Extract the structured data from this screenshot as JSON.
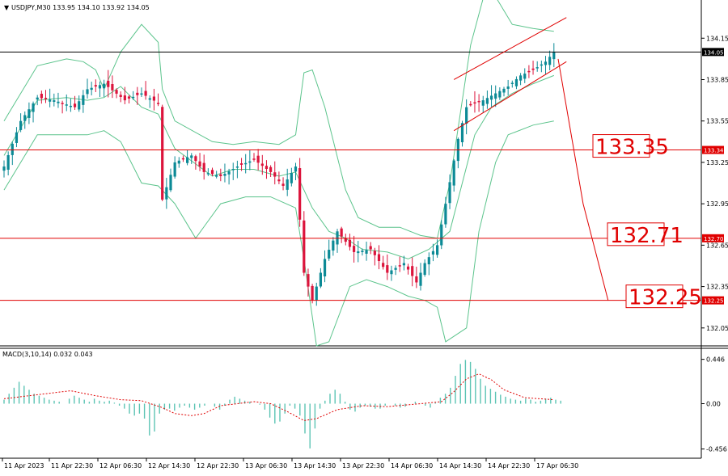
{
  "chart_data": {
    "type": "candlestick",
    "header": {
      "marker": "▼",
      "text": "USDJPY,M30  133.95 134.10 133.92 134.05"
    },
    "symbol": "USDJPY",
    "timeframe": "M30",
    "ohlc": {
      "open": 133.95,
      "high": 134.1,
      "low": 133.92,
      "close": 134.05
    },
    "price_axis": {
      "ylim": [
        131.92,
        134.38
      ],
      "ticks": [
        "134.15",
        "133.85",
        "133.55",
        "133.25",
        "132.95",
        "132.65",
        "132.35",
        "132.05"
      ]
    },
    "current_price": {
      "value": 134.05,
      "label": "134.05"
    },
    "levels": [
      {
        "value": 133.34,
        "tag": "133.34",
        "box": "133.35"
      },
      {
        "value": 132.7,
        "tag": "132.70",
        "box": "132.71"
      },
      {
        "value": 132.25,
        "tag": "132.25",
        "box": "132.25"
      }
    ],
    "time_axis": [
      "11 Apr 2023",
      "11 Apr 22:30",
      "12 Apr 06:30",
      "12 Apr 14:30",
      "12 Apr 22:30",
      "13 Apr 06:30",
      "13 Apr 14:30",
      "13 Apr 22:30",
      "14 Apr 06:30",
      "14 Apr 14:30",
      "14 Apr 22:30",
      "17 Apr 06:30"
    ],
    "close_path": [
      [
        0,
        133.22
      ],
      [
        4,
        133.55
      ],
      [
        8,
        133.72
      ],
      [
        12,
        133.7
      ],
      [
        17,
        133.65
      ],
      [
        20,
        133.78
      ],
      [
        24,
        133.82
      ],
      [
        29,
        133.7
      ],
      [
        33,
        133.75
      ],
      [
        37,
        133.68
      ],
      [
        38,
        132.98
      ],
      [
        41,
        133.25
      ],
      [
        45,
        133.3
      ],
      [
        48,
        133.18
      ],
      [
        52,
        133.15
      ],
      [
        56,
        133.22
      ],
      [
        60,
        133.27
      ],
      [
        64,
        133.18
      ],
      [
        67,
        133.08
      ],
      [
        70,
        133.22
      ],
      [
        72,
        132.45
      ],
      [
        74,
        132.25
      ],
      [
        77,
        132.55
      ],
      [
        80,
        132.75
      ],
      [
        84,
        132.6
      ],
      [
        88,
        132.62
      ],
      [
        92,
        132.45
      ],
      [
        96,
        132.52
      ],
      [
        99,
        132.38
      ],
      [
        101,
        132.52
      ],
      [
        104,
        132.65
      ],
      [
        106,
        132.95
      ],
      [
        109,
        133.42
      ],
      [
        111,
        133.65
      ],
      [
        113,
        133.68
      ],
      [
        115,
        133.7
      ],
      [
        118,
        133.75
      ],
      [
        121,
        133.8
      ],
      [
        124,
        133.88
      ],
      [
        127,
        133.92
      ],
      [
        130,
        133.98
      ],
      [
        132,
        134.05
      ]
    ],
    "bollinger": {
      "upper": [
        [
          0,
          133.55
        ],
        [
          8,
          133.95
        ],
        [
          15,
          134.0
        ],
        [
          19,
          133.98
        ],
        [
          22,
          133.92
        ],
        [
          24,
          133.78
        ],
        [
          28,
          134.05
        ],
        [
          33,
          134.25
        ],
        [
          37,
          134.12
        ],
        [
          38,
          133.78
        ],
        [
          41,
          133.55
        ],
        [
          50,
          133.4
        ],
        [
          55,
          133.38
        ],
        [
          60,
          133.4
        ],
        [
          66,
          133.38
        ],
        [
          70,
          133.45
        ],
        [
          72,
          133.9
        ],
        [
          74,
          133.92
        ],
        [
          77,
          133.65
        ],
        [
          82,
          133.05
        ],
        [
          85,
          132.85
        ],
        [
          90,
          132.78
        ],
        [
          95,
          132.78
        ],
        [
          100,
          132.72
        ],
        [
          104,
          132.7
        ],
        [
          107,
          133.1
        ],
        [
          112,
          134.1
        ],
        [
          116,
          134.55
        ],
        [
          119,
          134.4
        ],
        [
          122,
          134.25
        ],
        [
          127,
          134.22
        ],
        [
          132,
          134.2
        ]
      ],
      "middle": [
        [
          0,
          133.3
        ],
        [
          8,
          133.7
        ],
        [
          15,
          133.72
        ],
        [
          20,
          133.7
        ],
        [
          24,
          133.72
        ],
        [
          28,
          133.8
        ],
        [
          33,
          133.65
        ],
        [
          37,
          133.6
        ],
        [
          41,
          133.35
        ],
        [
          50,
          133.15
        ],
        [
          55,
          133.2
        ],
        [
          60,
          133.2
        ],
        [
          66,
          133.15
        ],
        [
          70,
          133.18
        ],
        [
          74,
          132.92
        ],
        [
          78,
          132.75
        ],
        [
          82,
          132.7
        ],
        [
          86,
          132.62
        ],
        [
          92,
          132.6
        ],
        [
          97,
          132.55
        ],
        [
          102,
          132.62
        ],
        [
          107,
          132.75
        ],
        [
          110,
          133.1
        ],
        [
          113,
          133.45
        ],
        [
          117,
          133.65
        ],
        [
          122,
          133.75
        ],
        [
          127,
          133.82
        ],
        [
          132,
          133.88
        ]
      ],
      "lower": [
        [
          0,
          133.05
        ],
        [
          8,
          133.45
        ],
        [
          15,
          133.45
        ],
        [
          20,
          133.45
        ],
        [
          24,
          133.48
        ],
        [
          28,
          133.4
        ],
        [
          33,
          133.1
        ],
        [
          37,
          133.08
        ],
        [
          41,
          132.95
        ],
        [
          46,
          132.7
        ],
        [
          52,
          132.95
        ],
        [
          58,
          133.0
        ],
        [
          64,
          133.0
        ],
        [
          70,
          132.92
        ],
        [
          72,
          132.55
        ],
        [
          75,
          131.92
        ],
        [
          78,
          131.95
        ],
        [
          83,
          132.35
        ],
        [
          87,
          132.4
        ],
        [
          92,
          132.35
        ],
        [
          97,
          132.28
        ],
        [
          101,
          132.25
        ],
        [
          104,
          132.2
        ],
        [
          106,
          131.95
        ],
        [
          111,
          132.05
        ],
        [
          114,
          132.75
        ],
        [
          118,
          133.25
        ],
        [
          121,
          133.45
        ],
        [
          127,
          133.52
        ],
        [
          132,
          133.55
        ]
      ]
    },
    "channel": {
      "upper": [
        [
          108,
          133.85
        ],
        [
          135,
          134.3
        ]
      ],
      "lower": [
        [
          108,
          133.48
        ],
        [
          135,
          133.98
        ]
      ]
    },
    "projection": [
      [
        133,
        134.0
      ],
      [
        139,
        132.95
      ],
      [
        145,
        132.25
      ]
    ],
    "macd": {
      "label": "MACD(3,10,14) 0.032 0.043",
      "ylim": [
        -0.5,
        0.5
      ],
      "ticks": [
        "0.446",
        "0.00",
        "-0.456"
      ],
      "histogram": [
        0.04,
        0.1,
        0.16,
        0.22,
        0.18,
        0.14,
        0.1,
        0.08,
        0.06,
        0.04,
        0.03,
        0.02,
        0.0,
        0.05,
        0.08,
        0.06,
        0.04,
        0.02,
        0.05,
        0.03,
        0.02,
        0.03,
        0.01,
        -0.02,
        -0.05,
        -0.1,
        -0.12,
        -0.1,
        -0.15,
        -0.32,
        -0.28,
        -0.1,
        -0.06,
        -0.05,
        -0.07,
        -0.04,
        -0.02,
        -0.04,
        -0.06,
        -0.04,
        -0.02,
        0.0,
        -0.03,
        -0.06,
        -0.02,
        0.04,
        0.07,
        0.05,
        0.03,
        0.02,
        0.0,
        -0.01,
        -0.06,
        -0.14,
        -0.2,
        -0.18,
        -0.1,
        -0.02,
        -0.05,
        -0.12,
        -0.3,
        -0.45,
        -0.25,
        -0.05,
        0.03,
        0.1,
        0.14,
        0.1,
        0.02,
        -0.06,
        -0.08,
        -0.04,
        -0.02,
        -0.03,
        -0.05,
        -0.05,
        -0.02,
        0.0,
        -0.02,
        -0.04,
        -0.03,
        0.0,
        0.02,
        0.0,
        -0.02,
        -0.04,
        0.01,
        0.06,
        0.1,
        0.16,
        0.28,
        0.4,
        0.44,
        0.42,
        0.35,
        0.25,
        0.18,
        0.15,
        0.12,
        0.09,
        0.07,
        0.05,
        0.04,
        0.03,
        0.05,
        0.04,
        0.02,
        0.03,
        0.05,
        0.06,
        0.04,
        0.03
      ],
      "signal": [
        [
          0,
          0.05
        ],
        [
          10,
          0.1
        ],
        [
          16,
          0.13
        ],
        [
          22,
          0.08
        ],
        [
          28,
          0.04
        ],
        [
          33,
          0.03
        ],
        [
          38,
          -0.04
        ],
        [
          41,
          -0.1
        ],
        [
          45,
          -0.12
        ],
        [
          48,
          -0.1
        ],
        [
          52,
          -0.02
        ],
        [
          56,
          0.0
        ],
        [
          60,
          0.02
        ],
        [
          64,
          0.0
        ],
        [
          68,
          -0.08
        ],
        [
          72,
          -0.17
        ],
        [
          75,
          -0.15
        ],
        [
          80,
          -0.06
        ],
        [
          86,
          -0.02
        ],
        [
          92,
          -0.03
        ],
        [
          100,
          0.0
        ],
        [
          105,
          0.02
        ],
        [
          108,
          0.12
        ],
        [
          111,
          0.25
        ],
        [
          114,
          0.3
        ],
        [
          117,
          0.24
        ],
        [
          120,
          0.14
        ],
        [
          125,
          0.06
        ],
        [
          132,
          0.04
        ]
      ]
    }
  }
}
